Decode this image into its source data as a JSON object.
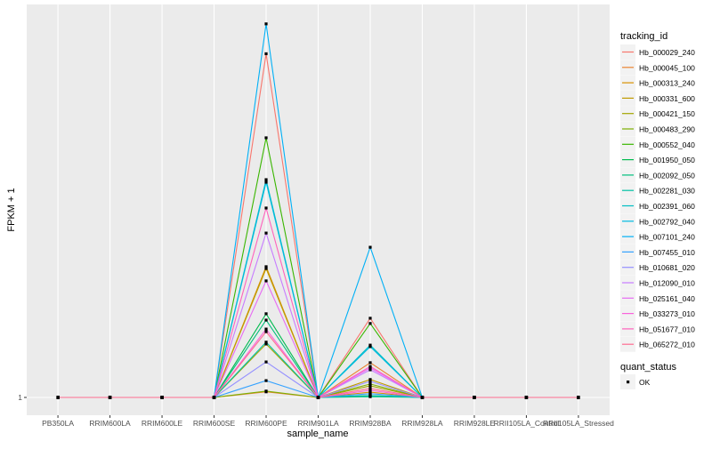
{
  "chart_data": {
    "type": "line",
    "title": "",
    "xlabel": "sample_name",
    "ylabel": "FPKM + 1",
    "y_ticks": [
      "1"
    ],
    "y_tick_values": [
      1
    ],
    "ylim": [
      -3.76,
      106.2
    ],
    "y_note_units": "y axis prints only tick 1; other values estimated",
    "grid": true,
    "legend_position": "right",
    "categories": [
      "PB350LA",
      "RRIM600LA",
      "RRIM600LE",
      "RRIM600SE",
      "RRIM600PE",
      "RRIM901LA",
      "RRIM928BA",
      "RRIM928LA",
      "RRIM928LE",
      "RRII105LA_Control",
      "RRII105LA_Stressed"
    ],
    "legend_title": "tracking_id",
    "series": [
      {
        "name": "Hb_000029_240",
        "color": "#F8766D",
        "values": [
          1,
          1,
          1,
          1,
          93,
          1,
          22.2,
          1,
          1,
          1,
          1
        ]
      },
      {
        "name": "Hb_000045_100",
        "color": "#EA8331",
        "values": [
          1,
          1,
          1,
          1,
          2.5,
          1,
          10.3,
          1,
          1,
          1,
          1
        ]
      },
      {
        "name": "Hb_000313_240",
        "color": "#D89000",
        "values": [
          1,
          1,
          1,
          1,
          36,
          1,
          2.4,
          1,
          1,
          1,
          1
        ]
      },
      {
        "name": "Hb_000331_600",
        "color": "#C09B00",
        "values": [
          1,
          1,
          1,
          1,
          35.5,
          1,
          5.8,
          1,
          1,
          1,
          1
        ]
      },
      {
        "name": "Hb_000421_150",
        "color": "#A3A500",
        "values": [
          1,
          1,
          1,
          1,
          15.3,
          1,
          4.1,
          1,
          1,
          1,
          1
        ]
      },
      {
        "name": "Hb_000483_290",
        "color": "#7CAE00",
        "values": [
          1,
          1,
          1,
          1,
          2.7,
          1,
          4.6,
          1,
          1,
          1,
          1
        ]
      },
      {
        "name": "Hb_000552_040",
        "color": "#39B600",
        "values": [
          1,
          1,
          1,
          1,
          70.5,
          1,
          20.8,
          1,
          1,
          1,
          1
        ]
      },
      {
        "name": "Hb_001950_050",
        "color": "#00BB4E",
        "values": [
          1,
          1,
          1,
          1,
          23.4,
          1,
          1.5,
          1,
          1,
          1,
          1
        ]
      },
      {
        "name": "Hb_002092_050",
        "color": "#00BF7D",
        "values": [
          1,
          1,
          1,
          1,
          21.7,
          1,
          1.2,
          1,
          1,
          1,
          1
        ]
      },
      {
        "name": "Hb_002281_030",
        "color": "#00C1A3",
        "values": [
          1,
          1,
          1,
          1,
          15.8,
          1,
          1.5,
          1,
          1,
          1,
          1
        ]
      },
      {
        "name": "Hb_002391_060",
        "color": "#00BFC4",
        "values": [
          1,
          1,
          1,
          1,
          59.3,
          1,
          15,
          1,
          1,
          1,
          1
        ]
      },
      {
        "name": "Hb_002792_040",
        "color": "#00BAE0",
        "values": [
          1,
          1,
          1,
          1,
          58.6,
          1,
          14.6,
          1,
          1,
          1,
          1
        ]
      },
      {
        "name": "Hb_007101_240",
        "color": "#00B0F6",
        "values": [
          1,
          1,
          1,
          1,
          101,
          1,
          41.2,
          1,
          1,
          1,
          1
        ]
      },
      {
        "name": "Hb_007455_010",
        "color": "#35A2FF",
        "values": [
          1,
          1,
          1,
          1,
          5.5,
          1,
          2.0,
          1,
          1,
          1,
          1
        ]
      },
      {
        "name": "Hb_010681_020",
        "color": "#9590FF",
        "values": [
          1,
          1,
          1,
          1,
          10.5,
          1,
          5.3,
          1,
          1,
          1,
          1
        ]
      },
      {
        "name": "Hb_012090_010",
        "color": "#C77CFF",
        "values": [
          1,
          1,
          1,
          1,
          45,
          1,
          8.4,
          1,
          1,
          1,
          1
        ]
      },
      {
        "name": "Hb_025161_040",
        "color": "#E76BF3",
        "values": [
          1,
          1,
          1,
          1,
          32.2,
          1,
          8.9,
          1,
          1,
          1,
          1
        ]
      },
      {
        "name": "Hb_033273_010",
        "color": "#FA62DB",
        "values": [
          1,
          1,
          1,
          1,
          19.3,
          1,
          2.9,
          1,
          1,
          1,
          1
        ]
      },
      {
        "name": "Hb_051677_010",
        "color": "#FF62BC",
        "values": [
          1,
          1,
          1,
          1,
          51.7,
          1,
          9.3,
          1,
          1,
          1,
          1
        ]
      },
      {
        "name": "Hb_065272_010",
        "color": "#FF6C91",
        "values": [
          1,
          1,
          1,
          1,
          18.6,
          1,
          3.4,
          1,
          1,
          1,
          1
        ]
      }
    ],
    "shape_legend_title": "quant_status",
    "shape_legend_items": [
      "OK"
    ],
    "point_color": "#000000",
    "panel_background": "#EBEBEB"
  }
}
